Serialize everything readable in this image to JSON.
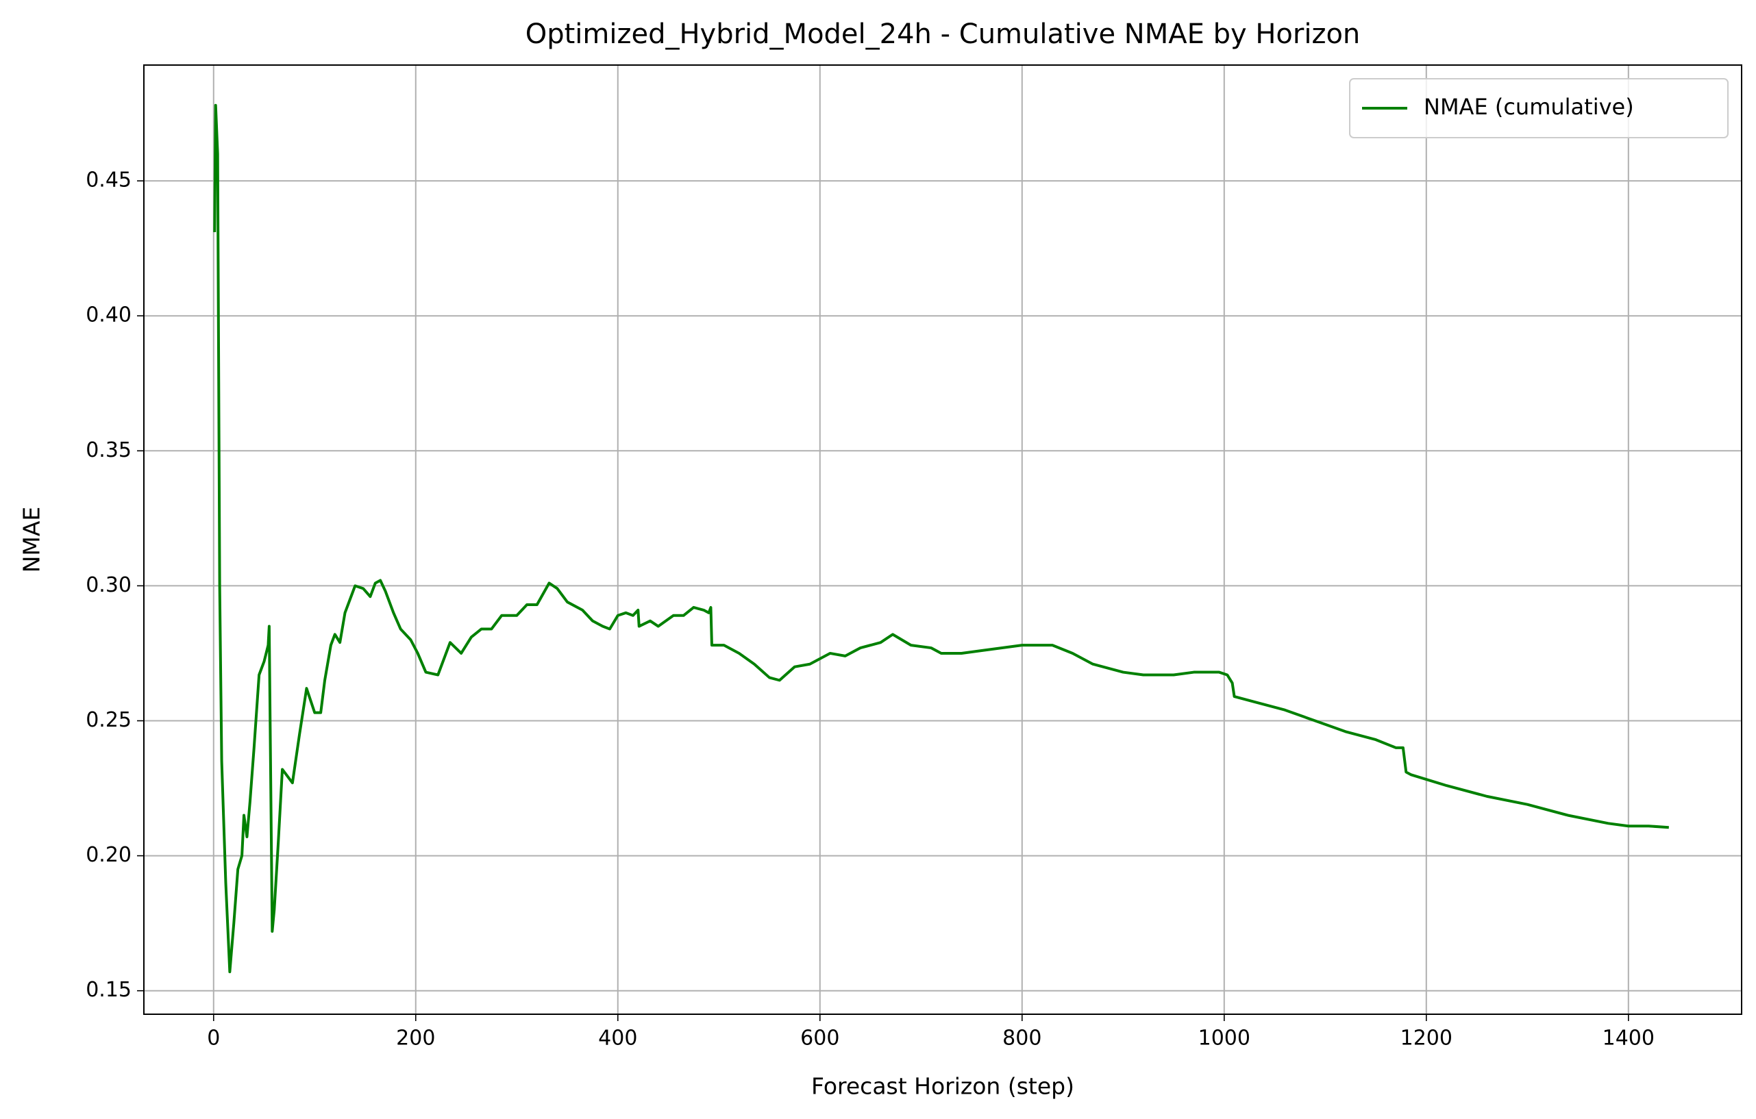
{
  "chart_data": {
    "type": "line",
    "title": "Optimized_Hybrid_Model_24h - Cumulative NMAE by Horizon",
    "x_label": "Forecast Horizon (step)",
    "y_label": "NMAE",
    "x": [
      1,
      2,
      4,
      6,
      8,
      12,
      16,
      20,
      24,
      28,
      30,
      33,
      36,
      40,
      45,
      50,
      54,
      55,
      58,
      60,
      64,
      68,
      72,
      78,
      85,
      92,
      100,
      106,
      110,
      116,
      120,
      125,
      130,
      140,
      148,
      155,
      160,
      165,
      170,
      178,
      185,
      195,
      202,
      210,
      222,
      234,
      245,
      255,
      265,
      275,
      285,
      300,
      310,
      320,
      332,
      340,
      350,
      365,
      375,
      385,
      392,
      400,
      408,
      415,
      420,
      421,
      432,
      440,
      455,
      465,
      475,
      485,
      490,
      492,
      493,
      505,
      520,
      535,
      550,
      560,
      575,
      590,
      610,
      625,
      640,
      660,
      672,
      690,
      710,
      720,
      740,
      760,
      800,
      830,
      850,
      870,
      900,
      920,
      950,
      970,
      995,
      1003,
      1008,
      1010,
      1030,
      1060,
      1090,
      1120,
      1150,
      1170,
      1177,
      1180,
      1185,
      1220,
      1260,
      1300,
      1340,
      1380,
      1400,
      1420,
      1440
    ],
    "series": [
      {
        "name": "NMAE (cumulative)",
        "color": "#008000",
        "values": [
          0.431,
          0.478,
          0.46,
          0.3,
          0.235,
          0.19,
          0.157,
          0.175,
          0.195,
          0.2,
          0.215,
          0.207,
          0.22,
          0.24,
          0.267,
          0.272,
          0.278,
          0.285,
          0.172,
          0.18,
          0.205,
          0.232,
          0.23,
          0.227,
          0.245,
          0.262,
          0.253,
          0.253,
          0.265,
          0.278,
          0.282,
          0.279,
          0.29,
          0.3,
          0.299,
          0.296,
          0.301,
          0.302,
          0.298,
          0.29,
          0.284,
          0.28,
          0.275,
          0.268,
          0.267,
          0.279,
          0.275,
          0.281,
          0.284,
          0.284,
          0.289,
          0.289,
          0.293,
          0.293,
          0.301,
          0.299,
          0.294,
          0.291,
          0.287,
          0.285,
          0.284,
          0.289,
          0.29,
          0.289,
          0.291,
          0.285,
          0.287,
          0.285,
          0.289,
          0.289,
          0.292,
          0.291,
          0.29,
          0.292,
          0.278,
          0.278,
          0.275,
          0.271,
          0.266,
          0.265,
          0.27,
          0.271,
          0.275,
          0.274,
          0.277,
          0.279,
          0.282,
          0.278,
          0.277,
          0.275,
          0.275,
          0.276,
          0.278,
          0.278,
          0.275,
          0.271,
          0.268,
          0.267,
          0.267,
          0.268,
          0.268,
          0.267,
          0.264,
          0.259,
          0.257,
          0.254,
          0.25,
          0.246,
          0.243,
          0.24,
          0.24,
          0.231,
          0.23,
          0.226,
          0.222,
          0.219,
          0.215,
          0.212,
          0.211,
          0.211,
          0.2105
        ]
      }
    ],
    "xlim": [
      -69,
      1512
    ],
    "ylim": [
      0.1413,
      0.4929
    ],
    "xticks": [
      0,
      200,
      400,
      600,
      800,
      1000,
      1200,
      1400
    ],
    "yticks": [
      0.15,
      {
        "value": 0.2,
        "label": "0.20"
      },
      0.25,
      {
        "value": 0.3,
        "label": "0.30"
      },
      0.35,
      {
        "value": 0.4,
        "label": "0.40"
      },
      0.45
    ],
    "grid": true,
    "legend": "upper right"
  }
}
